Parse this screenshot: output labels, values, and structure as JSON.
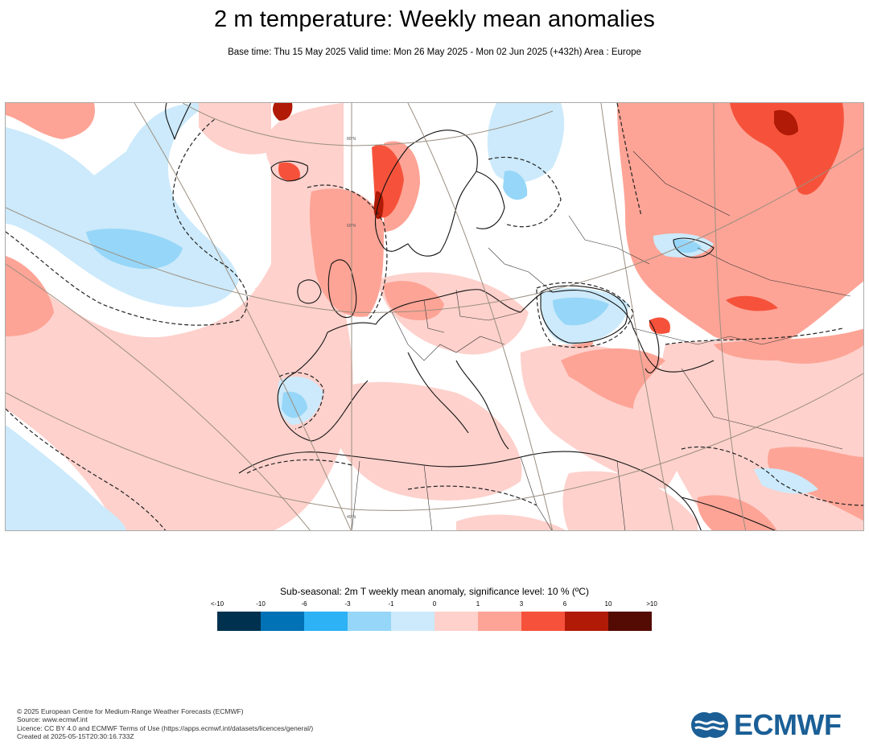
{
  "header": {
    "title": "2 m temperature: Weekly mean anomalies",
    "subtitle": "Base time: Thu 15 May 2025 Valid time: Mon 26 May 2025 - Mon 02 Jun 2025 (+432h) Area : Europe"
  },
  "map": {
    "region": "Europe",
    "lat_labels": [
      "80°N",
      "60°N",
      "40°N"
    ],
    "colors": {
      "background": "#ffffff",
      "coastline": "#111111",
      "borders": "#222222",
      "graticule": "#9b8f80",
      "significance_contour": "#333333"
    }
  },
  "legend": {
    "title": "Sub-seasonal: 2m T weekly mean anomaly, significance level: 10 % (ºC)",
    "ticks": [
      "<-10",
      "-10",
      "-6",
      "-3",
      "-1",
      "0",
      "1",
      "3",
      "6",
      "10",
      ">10"
    ],
    "colors": [
      "#00314f",
      "#0072b5",
      "#2db2f5",
      "#96d6f8",
      "#cceafb",
      "#fed1cc",
      "#fda496",
      "#f6523b",
      "#b01a06",
      "#540b03"
    ]
  },
  "footer": {
    "lines": [
      "© 2025 European Centre for Medium-Range Weather Forecasts (ECMWF)",
      "Source: www.ecmwf.int",
      "Licence: CC BY 4.0 and ECMWF Terms of Use (https://apps.ecmwf.int/datasets/licences/general/)",
      "Created at 2025-05-15T20:30:16.733Z"
    ]
  },
  "logo": {
    "text": "ECMWF",
    "color": "#1b5f96"
  }
}
